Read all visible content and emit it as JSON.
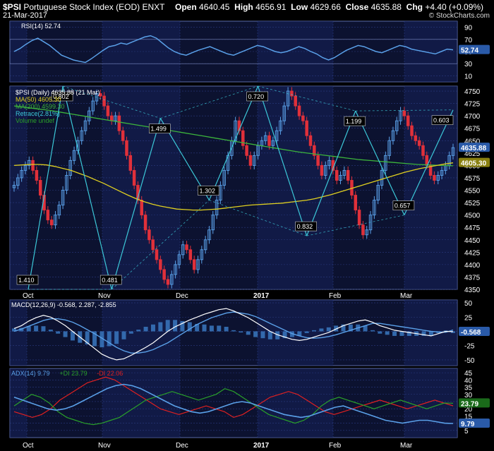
{
  "header": {
    "symbol": "$PSI",
    "name": "Portuguese Stock Index (EOD)",
    "exchange": "ENXT",
    "date": "21-Mar-2017",
    "open_label": "Open",
    "open": "4640.45",
    "high_label": "High",
    "high": "4656.91",
    "low_label": "Low",
    "low": "4629.66",
    "close_label": "Close",
    "close": "4635.88",
    "chg_label": "Chg",
    "chg": "+4.40 (+0.09%)",
    "brand": "© StockCharts.com"
  },
  "colors": {
    "background": "#000000",
    "panel": "#0c1230",
    "band": "#16205a",
    "grid": "#2a3a80",
    "candle_up": "#5aa0e8",
    "candle_down": "#e0303a",
    "ma50": "#e0d020",
    "ma200": "#3cb43c",
    "retrace": "#3cc8d8",
    "macd": "#ffffff",
    "signal": "#5aa0e8",
    "hist": "#3a78c0",
    "adx": "#5aa0e8",
    "plus_di": "#2aa02a",
    "minus_di": "#e02020"
  },
  "chart_data": [
    {
      "panel": "rsi",
      "type": "line",
      "legend": "RSI(14) 52.74",
      "y_ticks": [
        "90",
        "70",
        "50",
        "30",
        "10"
      ],
      "ylim": [
        0,
        100
      ],
      "last_value": "52.74",
      "values": [
        50,
        55,
        62,
        68,
        72,
        66,
        60,
        52,
        44,
        40,
        36,
        34,
        32,
        38,
        45,
        52,
        58,
        60,
        64,
        62,
        66,
        70,
        74,
        76,
        72,
        64,
        56,
        50,
        46,
        44,
        48,
        52,
        55,
        58,
        54,
        50,
        46,
        44,
        48,
        52,
        56,
        60,
        58,
        54,
        50,
        48,
        50,
        54,
        58,
        55,
        50,
        46,
        40,
        36,
        40,
        46,
        52,
        56,
        60,
        58,
        54,
        50,
        48,
        52,
        56,
        60,
        58,
        54,
        52,
        50,
        48,
        46,
        50,
        54,
        52.74
      ]
    },
    {
      "panel": "price",
      "type": "candlestick",
      "legend": [
        "$PSI (Daily) 4635.88 (21 Mar)",
        "MA(50) 4605.30",
        "MA(200) 4599.30",
        "Retrace(2.81%)",
        "Volume undef"
      ],
      "y_ticks": [
        "4750",
        "4725",
        "4700",
        "4675",
        "4650",
        "4625",
        "4600",
        "4575",
        "4550",
        "4525",
        "4500",
        "4475",
        "4450",
        "4425",
        "4400",
        "4375",
        "4350"
      ],
      "ylim": [
        4350,
        4760
      ],
      "x_ticks": [
        "Oct",
        "Nov",
        "Dec",
        "2017",
        "Feb",
        "Mar"
      ],
      "last_close": "4635.88",
      "ma50_value": "4605.30",
      "ma200_value": "4599.30",
      "closes": [
        4560,
        4575,
        4590,
        4600,
        4610,
        4590,
        4570,
        4540,
        4510,
        4490,
        4480,
        4500,
        4520,
        4550,
        4580,
        4610,
        4630,
        4650,
        4670,
        4690,
        4710,
        4730,
        4745,
        4740,
        4720,
        4700,
        4690,
        4700,
        4670,
        4650,
        4620,
        4590,
        4560,
        4530,
        4500,
        4470,
        4450,
        4430,
        4410,
        4390,
        4370,
        4360,
        4380,
        4400,
        4420,
        4440,
        4430,
        4410,
        4390,
        4410,
        4430,
        4450,
        4470,
        4500,
        4530,
        4560,
        4590,
        4620,
        4650,
        4690,
        4670,
        4640,
        4620,
        4600,
        4620,
        4640,
        4650,
        4660,
        4640,
        4650,
        4670,
        4690,
        4720,
        4750,
        4740,
        4720,
        4700,
        4690,
        4660,
        4640,
        4620,
        4600,
        4580,
        4600,
        4610,
        4590,
        4570,
        4580,
        4590,
        4570,
        4540,
        4510,
        4480,
        4460,
        4470,
        4500,
        4530,
        4560,
        4590,
        4620,
        4650,
        4670,
        4690,
        4710,
        4700,
        4680,
        4660,
        4650,
        4640,
        4620,
        4600,
        4580,
        4570,
        4580,
        4590,
        4600,
        4620,
        4635.88
      ],
      "ma50": [
        4600,
        4601,
        4602,
        4602,
        4601,
        4598,
        4594,
        4590,
        4584,
        4578,
        4571,
        4564,
        4556,
        4548,
        4540,
        4533,
        4527,
        4522,
        4518,
        4515,
        4512,
        4511,
        4510,
        4510,
        4511,
        4512,
        4514,
        4516,
        4518,
        4520,
        4521,
        4522,
        4523,
        4524,
        4526,
        4528,
        4530,
        4533,
        4537,
        4541,
        4546,
        4551,
        4556,
        4561,
        4566,
        4571,
        4576,
        4581,
        4586,
        4590,
        4594,
        4597,
        4600,
        4603,
        4605.3
      ],
      "ma200": [
        4720,
        4717,
        4714,
        4711,
        4707,
        4703,
        4699,
        4695,
        4691,
        4687,
        4683,
        4679,
        4675,
        4671,
        4667,
        4663,
        4659,
        4655,
        4651,
        4647,
        4643,
        4639,
        4635,
        4631,
        4627,
        4624,
        4621,
        4618,
        4615,
        4612,
        4610,
        4608,
        4606,
        4604,
        4602,
        4601,
        4600,
        4599.3
      ],
      "retrace_points": [
        {
          "label": "1.410",
          "value": 4350
        },
        {
          "label": "0.802",
          "value": 4760
        },
        {
          "label": "0.481",
          "value": 4350
        },
        {
          "label": "1.499",
          "value": 4695
        },
        {
          "label": "1.302",
          "value": 4530
        },
        {
          "label": "0.720",
          "value": 4760
        },
        {
          "label": "0.832",
          "value": 4458
        },
        {
          "label": "1.199",
          "value": 4710
        },
        {
          "label": "0.657",
          "value": 4500
        },
        {
          "label": "0.603",
          "value": 4712
        }
      ]
    },
    {
      "panel": "macd",
      "type": "line",
      "legend": "MACD(12,26,9) -0.568, 2.287, -2.855",
      "y_ticks": [
        "50",
        "25",
        "0",
        "-25",
        "-50"
      ],
      "ylim": [
        -60,
        55
      ],
      "last_value": "-0.568",
      "macd": [
        5,
        10,
        18,
        24,
        28,
        25,
        18,
        10,
        0,
        -10,
        -20,
        -30,
        -40,
        -46,
        -50,
        -48,
        -42,
        -35,
        -28,
        -20,
        -10,
        0,
        8,
        14,
        20,
        25,
        30,
        34,
        38,
        40,
        36,
        30,
        24,
        16,
        8,
        0,
        -6,
        -10,
        -14,
        -16,
        -14,
        -10,
        -6,
        -2,
        4,
        10,
        14,
        18,
        20,
        16,
        10,
        6,
        2,
        0,
        -2,
        -4,
        -6,
        -8,
        -4,
        0,
        -0.568
      ],
      "signal": [
        0,
        4,
        9,
        14,
        19,
        22,
        22,
        20,
        16,
        10,
        3,
        -4,
        -12,
        -20,
        -28,
        -34,
        -38,
        -38,
        -36,
        -32,
        -26,
        -20,
        -12,
        -4,
        4,
        12,
        18,
        24,
        28,
        32,
        34,
        32,
        30,
        26,
        20,
        14,
        8,
        2,
        -4,
        -8,
        -11,
        -12,
        -11,
        -9,
        -6,
        -2,
        2,
        6,
        10,
        14,
        14,
        12,
        10,
        8,
        6,
        4,
        2,
        0,
        -1,
        -1.5,
        2.287
      ],
      "histogram": [
        5,
        6,
        9,
        10,
        9,
        3,
        -4,
        -10,
        -16,
        -20,
        -23,
        -26,
        -28,
        -26,
        -22,
        -14,
        -4,
        3,
        8,
        12,
        16,
        20,
        20,
        18,
        16,
        13,
        12,
        10,
        10,
        8,
        2,
        -2,
        -6,
        -10,
        -12,
        -14,
        -14,
        -12,
        -10,
        -8,
        -3,
        2,
        5,
        7,
        10,
        12,
        12,
        12,
        10,
        2,
        -4,
        -6,
        -8,
        -8,
        -8,
        -8,
        -8,
        -8,
        -3,
        1.5,
        -2.855
      ]
    },
    {
      "panel": "adx",
      "type": "line",
      "legend": [
        "ADX(14) 9.79",
        "+DI 23.79",
        "-DI 22.06"
      ],
      "y_ticks": [
        "45",
        "40",
        "35",
        "30",
        "25",
        "20",
        "15",
        "10",
        "5"
      ],
      "ylim": [
        0,
        48
      ],
      "adx_value": "9.79",
      "plus_di_value": "23.79",
      "minus_di_value": "22.06",
      "adx": [
        28,
        26,
        24,
        22,
        20,
        19,
        20,
        22,
        25,
        28,
        31,
        34,
        36,
        37,
        36,
        34,
        31,
        28,
        25,
        22,
        20,
        18,
        17,
        18,
        20,
        22,
        24,
        25,
        24,
        22,
        20,
        18,
        16,
        15,
        14,
        15,
        17,
        19,
        21,
        22,
        20,
        18,
        16,
        14,
        12,
        11,
        10,
        11,
        12,
        12,
        11,
        10,
        9.79
      ],
      "plus_di": [
        22,
        26,
        30,
        28,
        24,
        18,
        14,
        12,
        10,
        9,
        10,
        12,
        14,
        18,
        22,
        26,
        28,
        30,
        32,
        30,
        28,
        26,
        28,
        30,
        34,
        32,
        28,
        24,
        20,
        16,
        14,
        12,
        10,
        12,
        16,
        22,
        26,
        28,
        26,
        24,
        22,
        20,
        22,
        24,
        26,
        24,
        22,
        20,
        22,
        24,
        23.79
      ],
      "minus_di": [
        18,
        16,
        14,
        16,
        20,
        26,
        30,
        34,
        38,
        40,
        42,
        40,
        36,
        32,
        28,
        24,
        20,
        18,
        16,
        18,
        20,
        22,
        20,
        18,
        14,
        16,
        20,
        24,
        28,
        30,
        32,
        30,
        26,
        22,
        18,
        16,
        18,
        20,
        22,
        24,
        26,
        24,
        22,
        20,
        22,
        24,
        26,
        24,
        22.06
      ]
    }
  ]
}
